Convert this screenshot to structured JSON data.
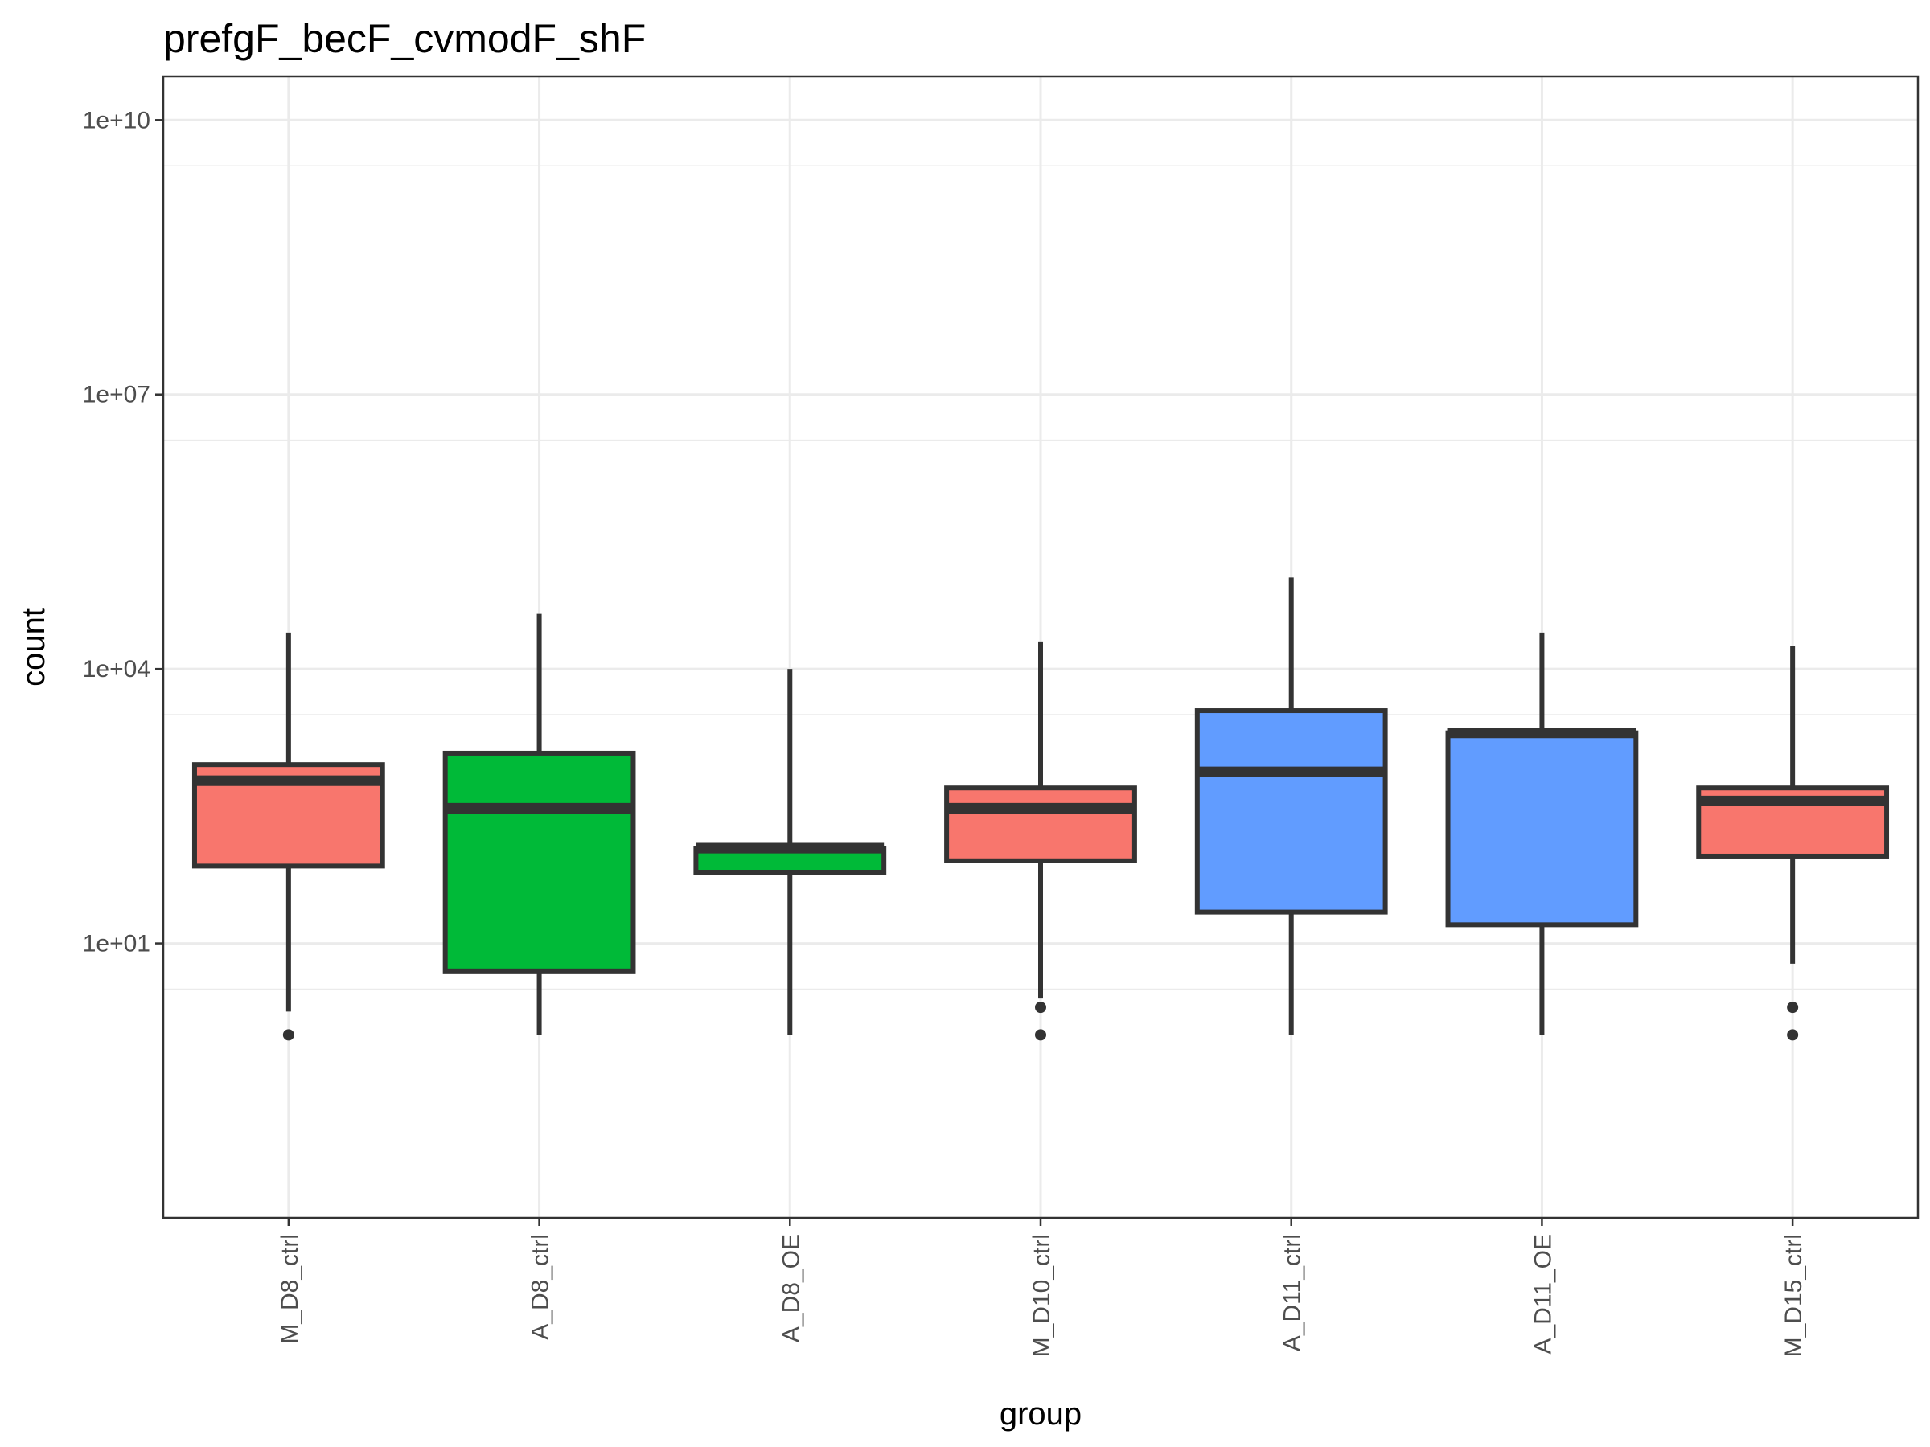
{
  "chart_data": {
    "type": "boxplot",
    "title": "prefgF_becF_cvmodF_shF",
    "xlabel": "group",
    "ylabel": "count",
    "y_scale": "log10",
    "ylim": [
      0.01,
      30000000000
    ],
    "y_ticks": [
      10,
      10000,
      10000000,
      10000000000
    ],
    "y_tick_labels": [
      "1e+01",
      "1e+04",
      "1e+07",
      "1e+10"
    ],
    "grid": true,
    "legend": "none",
    "categories": [
      "M_D8_ctrl",
      "A_D8_ctrl",
      "A_D8_OE",
      "M_D10_ctrl",
      "A_D11_ctrl",
      "A_D11_OE",
      "M_D15_ctrl"
    ],
    "boxes": [
      {
        "group": "M_D8_ctrl",
        "fill": "#F8766D",
        "whisker_low": 1.8,
        "q1": 70,
        "median": 600,
        "q3": 900,
        "whisker_high": 25000
      },
      {
        "group": "A_D8_ctrl",
        "fill": "#00BA38",
        "whisker_low": 1,
        "q1": 5,
        "median": 300,
        "q3": 1200,
        "whisker_high": 40000
      },
      {
        "group": "A_D8_OE",
        "fill": "#00BA38",
        "whisker_low": 1,
        "q1": 60,
        "median": 110,
        "q3": 110,
        "whisker_high": 10000
      },
      {
        "group": "M_D10_ctrl",
        "fill": "#F8766D",
        "whisker_low": 2.5,
        "q1": 80,
        "median": 300,
        "q3": 500,
        "whisker_high": 20000
      },
      {
        "group": "A_D11_ctrl",
        "fill": "#619CFF",
        "whisker_low": 1,
        "q1": 22,
        "median": 750,
        "q3": 3500,
        "whisker_high": 100000
      },
      {
        "group": "A_D11_OE",
        "fill": "#619CFF",
        "whisker_low": 1,
        "q1": 16,
        "median": 2000,
        "q3": 2000,
        "whisker_high": 25000
      },
      {
        "group": "M_D15_ctrl",
        "fill": "#F8766D",
        "whisker_low": 6,
        "q1": 90,
        "median": 360,
        "q3": 500,
        "whisker_high": 18000
      }
    ],
    "outliers": [
      {
        "group": "M_D8_ctrl",
        "values": [
          1
        ]
      },
      {
        "group": "M_D10_ctrl",
        "values": [
          1,
          2
        ]
      },
      {
        "group": "M_D15_ctrl",
        "values": [
          1,
          2
        ]
      }
    ],
    "colors": {
      "outline": "#333333",
      "grid": "#EBEBEB",
      "panel_border": "#333333"
    }
  }
}
